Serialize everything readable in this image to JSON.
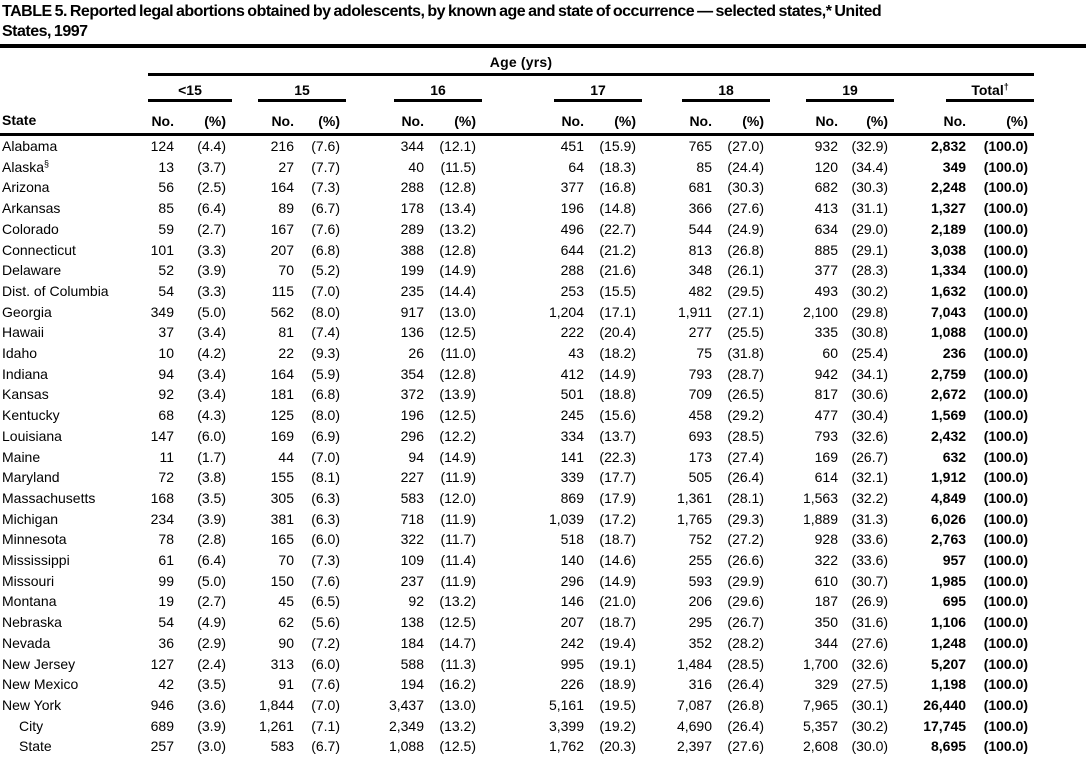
{
  "title_line1": "TABLE 5. Reported legal abortions obtained by adolescents, by known age and state of occurrence — selected states,* United",
  "title_line2": "States, 1997",
  "table": {
    "span_header": "Age (yrs)",
    "state_header": "State",
    "col_headers": {
      "no": "No.",
      "pct": "(%)"
    },
    "age_groups": [
      {
        "label": "<15"
      },
      {
        "label": "15"
      },
      {
        "label": "16"
      },
      {
        "label": "17"
      },
      {
        "label": "18"
      },
      {
        "label": "19"
      },
      {
        "label": "Total",
        "sup": "†"
      }
    ],
    "rows": [
      {
        "state": "Alabama",
        "values": [
          "124",
          "(4.4)",
          "216",
          "(7.6)",
          "344",
          "(12.1)",
          "451",
          "(15.9)",
          "765",
          "(27.0)",
          "932",
          "(32.9)",
          "2,832",
          "(100.0)"
        ]
      },
      {
        "state": "Alaska",
        "sup": "§",
        "values": [
          "13",
          "(3.7)",
          "27",
          "(7.7)",
          "40",
          "(11.5)",
          "64",
          "(18.3)",
          "85",
          "(24.4)",
          "120",
          "(34.4)",
          "349",
          "(100.0)"
        ]
      },
      {
        "state": "Arizona",
        "values": [
          "56",
          "(2.5)",
          "164",
          "(7.3)",
          "288",
          "(12.8)",
          "377",
          "(16.8)",
          "681",
          "(30.3)",
          "682",
          "(30.3)",
          "2,248",
          "(100.0)"
        ]
      },
      {
        "state": "Arkansas",
        "values": [
          "85",
          "(6.4)",
          "89",
          "(6.7)",
          "178",
          "(13.4)",
          "196",
          "(14.8)",
          "366",
          "(27.6)",
          "413",
          "(31.1)",
          "1,327",
          "(100.0)"
        ]
      },
      {
        "state": "Colorado",
        "values": [
          "59",
          "(2.7)",
          "167",
          "(7.6)",
          "289",
          "(13.2)",
          "496",
          "(22.7)",
          "544",
          "(24.9)",
          "634",
          "(29.0)",
          "2,189",
          "(100.0)"
        ]
      },
      {
        "state": "Connecticut",
        "values": [
          "101",
          "(3.3)",
          "207",
          "(6.8)",
          "388",
          "(12.8)",
          "644",
          "(21.2)",
          "813",
          "(26.8)",
          "885",
          "(29.1)",
          "3,038",
          "(100.0)"
        ]
      },
      {
        "state": "Delaware",
        "values": [
          "52",
          "(3.9)",
          "70",
          "(5.2)",
          "199",
          "(14.9)",
          "288",
          "(21.6)",
          "348",
          "(26.1)",
          "377",
          "(28.3)",
          "1,334",
          "(100.0)"
        ]
      },
      {
        "state": "Dist. of Columbia",
        "values": [
          "54",
          "(3.3)",
          "115",
          "(7.0)",
          "235",
          "(14.4)",
          "253",
          "(15.5)",
          "482",
          "(29.5)",
          "493",
          "(30.2)",
          "1,632",
          "(100.0)"
        ]
      },
      {
        "state": "Georgia",
        "values": [
          "349",
          "(5.0)",
          "562",
          "(8.0)",
          "917",
          "(13.0)",
          "1,204",
          "(17.1)",
          "1,911",
          "(27.1)",
          "2,100",
          "(29.8)",
          "7,043",
          "(100.0)"
        ]
      },
      {
        "state": "Hawaii",
        "values": [
          "37",
          "(3.4)",
          "81",
          "(7.4)",
          "136",
          "(12.5)",
          "222",
          "(20.4)",
          "277",
          "(25.5)",
          "335",
          "(30.8)",
          "1,088",
          "(100.0)"
        ]
      },
      {
        "state": "Idaho",
        "values": [
          "10",
          "(4.2)",
          "22",
          "(9.3)",
          "26",
          "(11.0)",
          "43",
          "(18.2)",
          "75",
          "(31.8)",
          "60",
          "(25.4)",
          "236",
          "(100.0)"
        ]
      },
      {
        "state": "Indiana",
        "values": [
          "94",
          "(3.4)",
          "164",
          "(5.9)",
          "354",
          "(12.8)",
          "412",
          "(14.9)",
          "793",
          "(28.7)",
          "942",
          "(34.1)",
          "2,759",
          "(100.0)"
        ]
      },
      {
        "state": "Kansas",
        "values": [
          "92",
          "(3.4)",
          "181",
          "(6.8)",
          "372",
          "(13.9)",
          "501",
          "(18.8)",
          "709",
          "(26.5)",
          "817",
          "(30.6)",
          "2,672",
          "(100.0)"
        ]
      },
      {
        "state": "Kentucky",
        "values": [
          "68",
          "(4.3)",
          "125",
          "(8.0)",
          "196",
          "(12.5)",
          "245",
          "(15.6)",
          "458",
          "(29.2)",
          "477",
          "(30.4)",
          "1,569",
          "(100.0)"
        ]
      },
      {
        "state": "Louisiana",
        "values": [
          "147",
          "(6.0)",
          "169",
          "(6.9)",
          "296",
          "(12.2)",
          "334",
          "(13.7)",
          "693",
          "(28.5)",
          "793",
          "(32.6)",
          "2,432",
          "(100.0)"
        ]
      },
      {
        "state": "Maine",
        "values": [
          "11",
          "(1.7)",
          "44",
          "(7.0)",
          "94",
          "(14.9)",
          "141",
          "(22.3)",
          "173",
          "(27.4)",
          "169",
          "(26.7)",
          "632",
          "(100.0)"
        ]
      },
      {
        "state": "Maryland",
        "values": [
          "72",
          "(3.8)",
          "155",
          "(8.1)",
          "227",
          "(11.9)",
          "339",
          "(17.7)",
          "505",
          "(26.4)",
          "614",
          "(32.1)",
          "1,912",
          "(100.0)"
        ]
      },
      {
        "state": "Massachusetts",
        "values": [
          "168",
          "(3.5)",
          "305",
          "(6.3)",
          "583",
          "(12.0)",
          "869",
          "(17.9)",
          "1,361",
          "(28.1)",
          "1,563",
          "(32.2)",
          "4,849",
          "(100.0)"
        ]
      },
      {
        "state": "Michigan",
        "values": [
          "234",
          "(3.9)",
          "381",
          "(6.3)",
          "718",
          "(11.9)",
          "1,039",
          "(17.2)",
          "1,765",
          "(29.3)",
          "1,889",
          "(31.3)",
          "6,026",
          "(100.0)"
        ]
      },
      {
        "state": "Minnesota",
        "values": [
          "78",
          "(2.8)",
          "165",
          "(6.0)",
          "322",
          "(11.7)",
          "518",
          "(18.7)",
          "752",
          "(27.2)",
          "928",
          "(33.6)",
          "2,763",
          "(100.0)"
        ]
      },
      {
        "state": "Mississippi",
        "values": [
          "61",
          "(6.4)",
          "70",
          "(7.3)",
          "109",
          "(11.4)",
          "140",
          "(14.6)",
          "255",
          "(26.6)",
          "322",
          "(33.6)",
          "957",
          "(100.0)"
        ]
      },
      {
        "state": "Missouri",
        "values": [
          "99",
          "(5.0)",
          "150",
          "(7.6)",
          "237",
          "(11.9)",
          "296",
          "(14.9)",
          "593",
          "(29.9)",
          "610",
          "(30.7)",
          "1,985",
          "(100.0)"
        ]
      },
      {
        "state": "Montana",
        "values": [
          "19",
          "(2.7)",
          "45",
          "(6.5)",
          "92",
          "(13.2)",
          "146",
          "(21.0)",
          "206",
          "(29.6)",
          "187",
          "(26.9)",
          "695",
          "(100.0)"
        ]
      },
      {
        "state": "Nebraska",
        "values": [
          "54",
          "(4.9)",
          "62",
          "(5.6)",
          "138",
          "(12.5)",
          "207",
          "(18.7)",
          "295",
          "(26.7)",
          "350",
          "(31.6)",
          "1,106",
          "(100.0)"
        ]
      },
      {
        "state": "Nevada",
        "values": [
          "36",
          "(2.9)",
          "90",
          "(7.2)",
          "184",
          "(14.7)",
          "242",
          "(19.4)",
          "352",
          "(28.2)",
          "344",
          "(27.6)",
          "1,248",
          "(100.0)"
        ]
      },
      {
        "state": "New Jersey",
        "values": [
          "127",
          "(2.4)",
          "313",
          "(6.0)",
          "588",
          "(11.3)",
          "995",
          "(19.1)",
          "1,484",
          "(28.5)",
          "1,700",
          "(32.6)",
          "5,207",
          "(100.0)"
        ]
      },
      {
        "state": "New Mexico",
        "values": [
          "42",
          "(3.5)",
          "91",
          "(7.6)",
          "194",
          "(16.2)",
          "226",
          "(18.9)",
          "316",
          "(26.4)",
          "329",
          "(27.5)",
          "1,198",
          "(100.0)"
        ]
      },
      {
        "state": "New York",
        "values": [
          "946",
          "(3.6)",
          "1,844",
          "(7.0)",
          "3,437",
          "(13.0)",
          "5,161",
          "(19.5)",
          "7,087",
          "(26.8)",
          "7,965",
          "(30.1)",
          "26,440",
          "(100.0)"
        ]
      },
      {
        "state": "City",
        "indent": true,
        "values": [
          "689",
          "(3.9)",
          "1,261",
          "(7.1)",
          "2,349",
          "(13.2)",
          "3,399",
          "(19.2)",
          "4,690",
          "(26.4)",
          "5,357",
          "(30.2)",
          "17,745",
          "(100.0)"
        ]
      },
      {
        "state": "State",
        "indent": true,
        "values": [
          "257",
          "(3.0)",
          "583",
          "(6.7)",
          "1,088",
          "(12.5)",
          "1,762",
          "(20.3)",
          "2,397",
          "(27.6)",
          "2,608",
          "(30.0)",
          "8,695",
          "(100.0)"
        ]
      }
    ]
  },
  "colors": {
    "text": "#000000",
    "background": "#ffffff",
    "rule": "#000000"
  }
}
